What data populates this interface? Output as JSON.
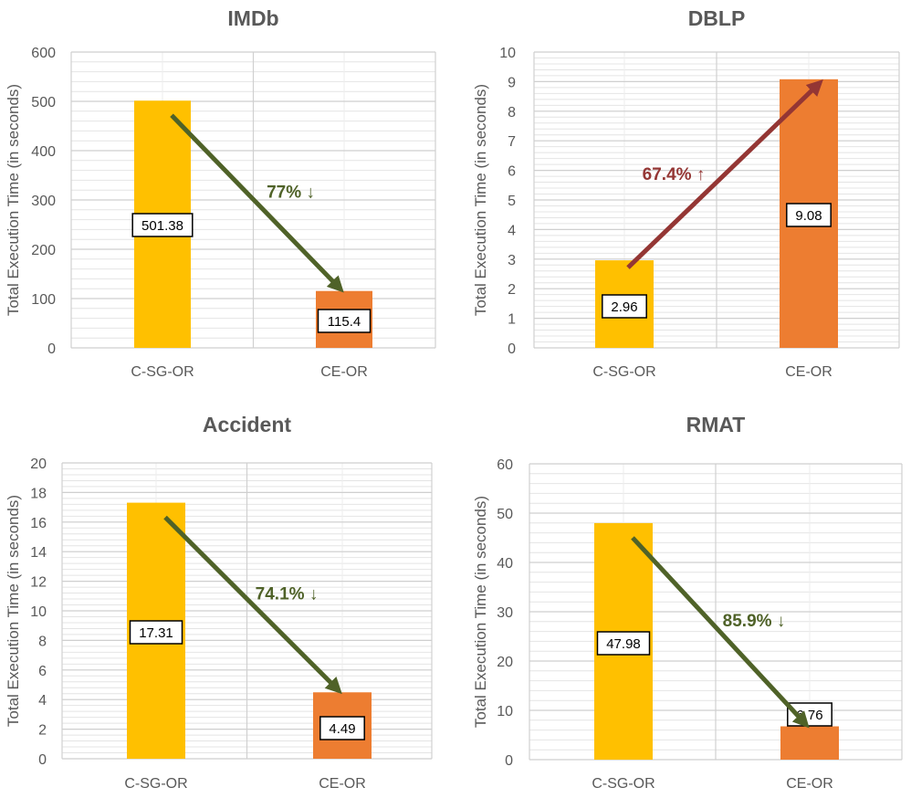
{
  "chart_data": [
    {
      "type": "bar",
      "title": "IMDb",
      "ylabel": "Total Execution Time (in seconds)",
      "categories": [
        "C-SG-OR",
        "CE-OR"
      ],
      "values": [
        501.38,
        115.4
      ],
      "value_labels": [
        "501.38",
        "115.4"
      ],
      "ylim": [
        0,
        600
      ],
      "ytick_step": 100,
      "colors": [
        "#FFC000",
        "#ED7D31"
      ],
      "annotation": {
        "text": "77% ↓",
        "direction": "down",
        "color": "#4F6228"
      },
      "grid": true
    },
    {
      "type": "bar",
      "title": "DBLP",
      "ylabel": "Total Execution Time (in seconds)",
      "categories": [
        "C-SG-OR",
        "CE-OR"
      ],
      "values": [
        2.96,
        9.08
      ],
      "value_labels": [
        "2.96",
        "9.08"
      ],
      "ylim": [
        0,
        10
      ],
      "ytick_step": 1,
      "colors": [
        "#FFC000",
        "#ED7D31"
      ],
      "annotation": {
        "text": "67.4% ↑",
        "direction": "up",
        "color": "#943634"
      },
      "grid": true
    },
    {
      "type": "bar",
      "title": "Accident",
      "ylabel": "Total Execution Time (in seconds)",
      "categories": [
        "C-SG-OR",
        "CE-OR"
      ],
      "values": [
        17.31,
        4.49
      ],
      "value_labels": [
        "17.31",
        "4.49"
      ],
      "ylim": [
        0,
        20
      ],
      "ytick_step": 2,
      "colors": [
        "#FFC000",
        "#ED7D31"
      ],
      "annotation": {
        "text": "74.1% ↓",
        "direction": "down",
        "color": "#4F6228"
      },
      "grid": true
    },
    {
      "type": "bar",
      "title": "RMAT",
      "ylabel": "Total Execution Time (in seconds)",
      "categories": [
        "C-SG-OR",
        "CE-OR"
      ],
      "values": [
        47.98,
        6.76
      ],
      "value_labels": [
        "47.98",
        "6.76"
      ],
      "ylim": [
        0,
        60
      ],
      "ytick_step": 10,
      "colors": [
        "#FFC000",
        "#ED7D31"
      ],
      "annotation": {
        "text": "85.9% ↓",
        "direction": "down",
        "color": "#4F6228"
      },
      "grid": true
    }
  ]
}
